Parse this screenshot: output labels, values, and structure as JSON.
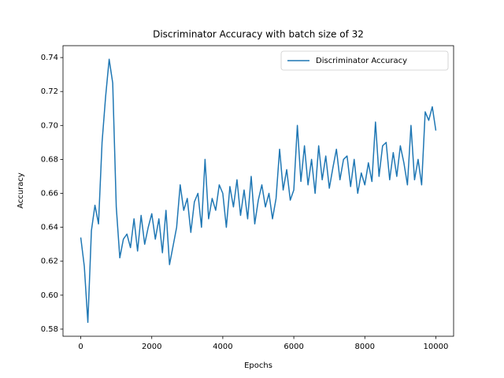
{
  "chart_data": {
    "type": "line",
    "title": "Discriminator Accuracy with batch size of 32",
    "x_label": "Epochs",
    "y_label": "Accuracy",
    "x": [
      0,
      100,
      200,
      300,
      400,
      500,
      600,
      700,
      800,
      900,
      1000,
      1100,
      1200,
      1300,
      1400,
      1500,
      1600,
      1700,
      1800,
      1900,
      2000,
      2100,
      2200,
      2300,
      2400,
      2500,
      2600,
      2700,
      2800,
      2900,
      3000,
      3100,
      3200,
      3300,
      3400,
      3500,
      3600,
      3700,
      3800,
      3900,
      4000,
      4100,
      4200,
      4300,
      4400,
      4500,
      4600,
      4700,
      4800,
      4900,
      5000,
      5100,
      5200,
      5300,
      5400,
      5500,
      5600,
      5700,
      5800,
      5900,
      6000,
      6100,
      6200,
      6300,
      6400,
      6500,
      6600,
      6700,
      6800,
      6900,
      7000,
      7100,
      7200,
      7300,
      7400,
      7500,
      7600,
      7700,
      7800,
      7900,
      8000,
      8100,
      8200,
      8300,
      8400,
      8500,
      8600,
      8700,
      8800,
      8900,
      9000,
      9100,
      9200,
      9300,
      9400,
      9500,
      9600,
      9700,
      9800,
      9900,
      10000
    ],
    "series": [
      {
        "name": "Discriminator Accuracy",
        "color": "#1f77b4",
        "values": [
          0.634,
          0.617,
          0.584,
          0.638,
          0.653,
          0.642,
          0.69,
          0.717,
          0.739,
          0.725,
          0.652,
          0.622,
          0.633,
          0.636,
          0.628,
          0.645,
          0.626,
          0.647,
          0.63,
          0.64,
          0.648,
          0.633,
          0.645,
          0.625,
          0.65,
          0.618,
          0.629,
          0.64,
          0.665,
          0.65,
          0.657,
          0.637,
          0.655,
          0.66,
          0.64,
          0.68,
          0.645,
          0.657,
          0.65,
          0.665,
          0.66,
          0.64,
          0.664,
          0.652,
          0.668,
          0.647,
          0.662,
          0.645,
          0.67,
          0.642,
          0.656,
          0.665,
          0.652,
          0.66,
          0.645,
          0.657,
          0.686,
          0.662,
          0.674,
          0.656,
          0.662,
          0.7,
          0.667,
          0.688,
          0.665,
          0.68,
          0.66,
          0.688,
          0.668,
          0.682,
          0.663,
          0.675,
          0.686,
          0.668,
          0.68,
          0.682,
          0.664,
          0.68,
          0.66,
          0.672,
          0.665,
          0.678,
          0.667,
          0.702,
          0.67,
          0.688,
          0.69,
          0.668,
          0.684,
          0.67,
          0.688,
          0.678,
          0.665,
          0.7,
          0.668,
          0.68,
          0.665,
          0.708,
          0.703,
          0.711,
          0.697
        ]
      }
    ],
    "xlim": [
      -500,
      10500
    ],
    "xticks": [
      0,
      2000,
      4000,
      6000,
      8000,
      10000
    ],
    "ylim": [
      0.5758,
      0.747
    ],
    "yticks": [
      0.58,
      {
        "value": 0.6,
        "label": "0.60"
      },
      0.62,
      0.64,
      0.66,
      0.68,
      {
        "value": 0.7,
        "label": "0.70"
      },
      0.72,
      0.74
    ],
    "legend": "upper right",
    "grid": false
  }
}
